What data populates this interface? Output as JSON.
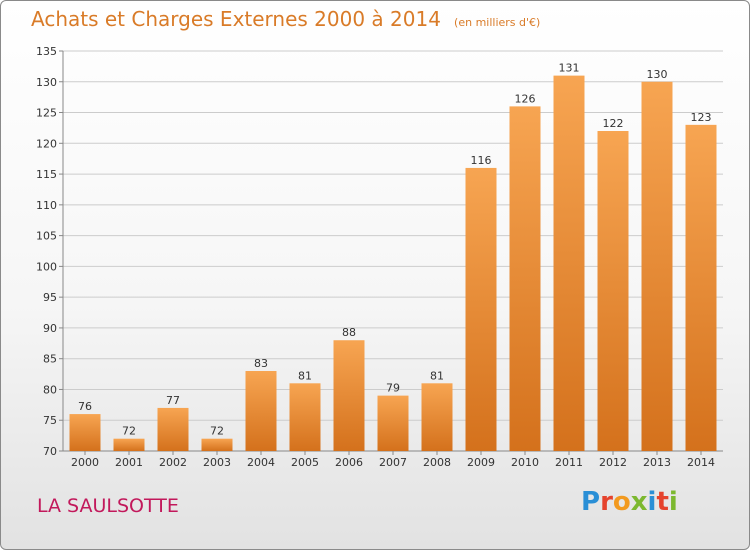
{
  "header": {
    "title": "Achats et Charges Externes 2000 à 2014",
    "subtitle": "(en milliers d'€)"
  },
  "footer": {
    "commune": "LA SAULSOTTE",
    "logo_text": "Proxiti",
    "logo_letters": [
      "P",
      "r",
      "o",
      "x",
      "i",
      "t",
      "i"
    ],
    "logo_colors": [
      "#2a8fd6",
      "#e5432d",
      "#f29a1f",
      "#7cb82f",
      "#2a8fd6",
      "#e5432d",
      "#7cb82f"
    ]
  },
  "colors": {
    "bar_light": "#f7a552",
    "bar_dark": "#d4711c",
    "title": "#d97b28",
    "commune": "#c2185b",
    "grid": "#cccccc"
  },
  "chart_data": {
    "type": "bar",
    "title": "Achats et Charges Externes 2000 à 2014",
    "subtitle": "(en milliers d'€)",
    "xlabel": "",
    "ylabel": "",
    "categories": [
      "2000",
      "2001",
      "2002",
      "2003",
      "2004",
      "2005",
      "2006",
      "2007",
      "2008",
      "2009",
      "2010",
      "2011",
      "2012",
      "2013",
      "2014"
    ],
    "values": [
      76,
      72,
      77,
      72,
      83,
      81,
      88,
      79,
      81,
      116,
      126,
      131,
      122,
      130,
      123
    ],
    "ylim": [
      70,
      135
    ],
    "yticks": [
      70,
      75,
      80,
      85,
      90,
      95,
      100,
      105,
      110,
      115,
      120,
      125,
      130,
      135
    ],
    "grid": true,
    "data_labels": true
  }
}
